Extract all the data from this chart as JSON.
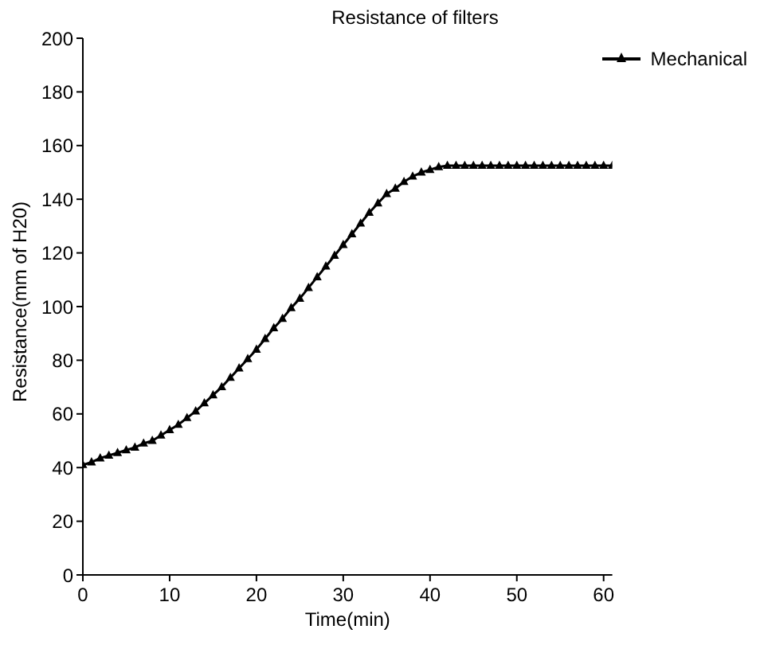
{
  "chart_data": {
    "type": "line",
    "title": "Resistance of filters",
    "xlabel": "Time(min)",
    "ylabel": "Resistance(mm of H20)",
    "x": [
      0,
      1,
      2,
      3,
      4,
      5,
      6,
      7,
      8,
      9,
      10,
      11,
      12,
      13,
      14,
      15,
      16,
      17,
      18,
      19,
      20,
      21,
      22,
      23,
      24,
      25,
      26,
      27,
      28,
      29,
      30,
      31,
      32,
      33,
      34,
      35,
      36,
      37,
      38,
      39,
      40,
      41,
      42,
      43,
      44,
      45,
      46,
      47,
      48,
      49,
      50,
      51,
      52,
      53,
      54,
      55,
      56,
      57,
      58,
      59,
      60,
      61
    ],
    "series": [
      {
        "name": "Mechanical",
        "color": "#000000",
        "values": [
          41,
          42,
          43.5,
          44.5,
          45.5,
          46.5,
          47.5,
          49,
          50,
          52,
          54,
          56,
          58.5,
          61,
          64,
          67,
          70,
          73.5,
          77,
          80.5,
          84,
          88,
          92,
          95.5,
          99.5,
          103,
          107,
          111,
          115,
          119,
          123,
          127,
          131,
          135,
          138.5,
          142,
          144,
          146.5,
          148.5,
          150,
          151,
          152,
          152.5,
          152.5,
          152.5,
          152.5,
          152.5,
          152.5,
          152.5,
          152.5,
          152.5,
          152.5,
          152.5,
          152.5,
          152.5,
          152.5,
          152.5,
          152.5,
          152.5,
          152.5,
          152.5,
          152.5
        ]
      }
    ],
    "xlim": [
      0,
      61
    ],
    "xticks": [
      0,
      10,
      20,
      30,
      40,
      50,
      60
    ],
    "ylim": [
      0,
      200
    ],
    "yticks": [
      0,
      20,
      40,
      60,
      80,
      100,
      120,
      140,
      160,
      180,
      200
    ],
    "grid": false,
    "legend": "top right",
    "marker": "triangle",
    "line_style": "solid"
  }
}
